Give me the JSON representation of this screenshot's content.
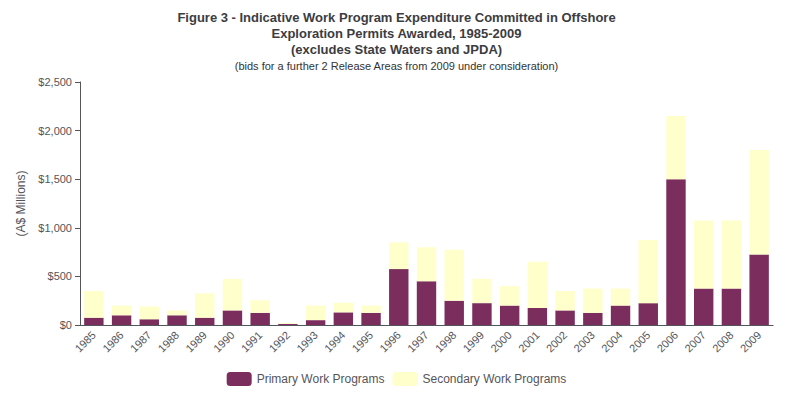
{
  "chart_data": {
    "type": "bar",
    "stacked": true,
    "title": "Figure 3 - Indicative Work Program Expenditure Committed in Offshore\nExploration Permits Awarded, 1985-2009\n(excludes State Waters and JPDA)",
    "subtitle": "(bids for a further 2 Release Areas from 2009 under consideration)",
    "ylabel": "(A$ Millions)",
    "categories": [
      "1985",
      "1986",
      "1987",
      "1988",
      "1989",
      "1990",
      "1991",
      "1992",
      "1993",
      "1994",
      "1995",
      "1996",
      "1997",
      "1998",
      "1999",
      "2000",
      "2001",
      "2002",
      "2003",
      "2004",
      "2005",
      "2006",
      "2007",
      "2008",
      "2009"
    ],
    "series": [
      {
        "name": "Primary Work Programs",
        "color": "#7B2D5E",
        "values": [
          75,
          100,
          60,
          100,
          75,
          150,
          125,
          10,
          50,
          130,
          125,
          575,
          450,
          250,
          225,
          200,
          175,
          150,
          125,
          200,
          225,
          1500,
          375,
          375,
          725
        ]
      },
      {
        "name": "Secondary Work Programs",
        "color": "#FFFFCC",
        "values": [
          275,
          100,
          130,
          50,
          250,
          325,
          130,
          10,
          150,
          100,
          75,
          275,
          350,
          525,
          250,
          200,
          475,
          200,
          250,
          175,
          650,
          650,
          700,
          700,
          1075
        ]
      }
    ],
    "ylim": [
      0,
      2500
    ],
    "yticks": [
      {
        "value": 0,
        "label": "$0"
      },
      {
        "value": 500,
        "label": "$500"
      },
      {
        "value": 1000,
        "label": "$1,000"
      },
      {
        "value": 1500,
        "label": "$1,500"
      },
      {
        "value": 2000,
        "label": "$2,000"
      },
      {
        "value": 2500,
        "label": "$2,500"
      }
    ],
    "grid": false,
    "legend": "bottom"
  }
}
